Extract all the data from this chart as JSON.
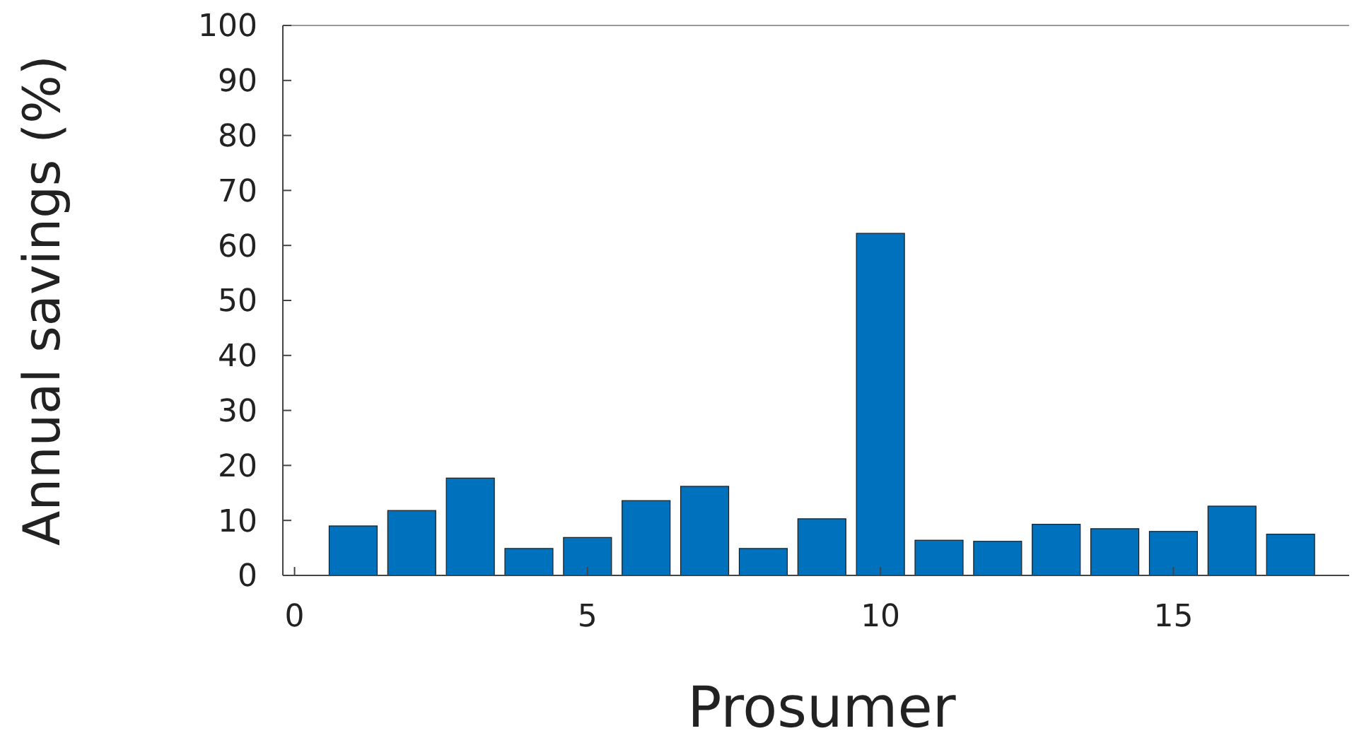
{
  "chart_data": {
    "type": "bar",
    "xlabel": "Prosumer",
    "ylabel": "Annual savings (%)",
    "x": [
      1,
      2,
      3,
      4,
      5,
      6,
      7,
      8,
      9,
      10,
      11,
      12,
      13,
      14,
      15,
      16,
      17
    ],
    "values": [
      9.0,
      11.8,
      17.7,
      4.9,
      6.9,
      13.6,
      16.2,
      4.9,
      10.3,
      62.2,
      6.4,
      6.2,
      9.3,
      8.5,
      8.0,
      12.6,
      7.5
    ],
    "color": "#0072bd",
    "xlim": [
      -0.2,
      18
    ],
    "xticks": [
      0,
      5,
      10,
      15
    ],
    "ylim": [
      0,
      100
    ],
    "yticks": [
      0,
      10,
      20,
      30,
      40,
      50,
      60,
      70,
      80,
      90,
      100
    ],
    "grid": false
  }
}
